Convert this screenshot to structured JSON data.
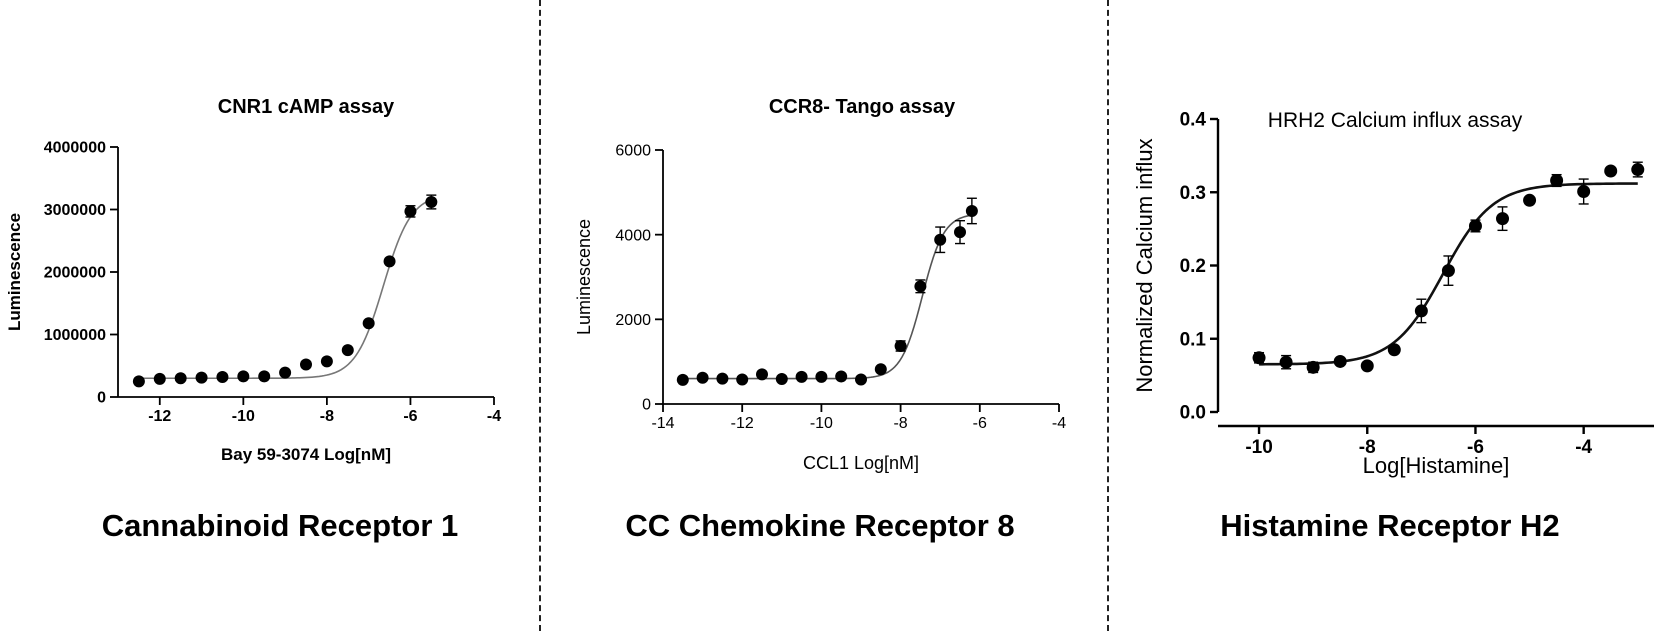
{
  "panels": [
    {
      "heading": "Cannabinoid Receptor 1",
      "chart_data": {
        "type": "scatter",
        "title": "CNR1 cAMP assay",
        "xlabel": "Bay 59-3074 Log[nM]",
        "ylabel": "Luminescence",
        "xlim": [
          -13,
          -4
        ],
        "ylim": [
          0,
          4000000
        ],
        "xticks": [
          -12,
          -10,
          -8,
          -6,
          -4
        ],
        "yticks": [
          0,
          1000000,
          2000000,
          3000000,
          4000000
        ],
        "x": [
          -12.5,
          -12.0,
          -11.5,
          -11.0,
          -10.5,
          -10.0,
          -9.5,
          -9.0,
          -8.5,
          -8.0,
          -7.5,
          -7.0,
          -6.5,
          -6.0,
          -5.5
        ],
        "y": [
          250000,
          290000,
          300000,
          310000,
          320000,
          330000,
          330000,
          390000,
          520000,
          570000,
          750000,
          1180000,
          2170000,
          2970000,
          3120000
        ],
        "err": [
          0,
          0,
          0,
          0,
          0,
          0,
          0,
          0,
          0,
          0,
          0,
          0,
          0,
          90000,
          110000
        ],
        "fit": {
          "bottom": 300000,
          "top": 3250000,
          "logEC50": -6.65,
          "hill": 1.3
        }
      }
    },
    {
      "heading": "CC Chemokine Receptor 8",
      "chart_data": {
        "type": "scatter",
        "title": "CCR8- Tango assay",
        "xlabel": "CCL1 Log[nM]",
        "ylabel": "Luminescence",
        "xlim": [
          -14,
          -4
        ],
        "ylim": [
          0,
          6000
        ],
        "xticks": [
          -14,
          -12,
          -10,
          -8,
          -6,
          -4
        ],
        "yticks": [
          0,
          2000,
          4000,
          6000
        ],
        "x": [
          -13.5,
          -13.0,
          -12.5,
          -12.0,
          -11.5,
          -11.0,
          -10.5,
          -10.0,
          -9.5,
          -9.0,
          -8.5,
          -8.0,
          -7.5,
          -7.0,
          -6.5,
          -6.2
        ],
        "y": [
          570,
          620,
          600,
          580,
          700,
          590,
          640,
          640,
          650,
          580,
          820,
          1370,
          2780,
          3880,
          4060,
          4560
        ],
        "err": [
          0,
          0,
          0,
          0,
          0,
          0,
          0,
          0,
          0,
          0,
          0,
          120,
          150,
          300,
          270,
          300
        ],
        "fit": {
          "bottom": 600,
          "top": 4500,
          "logEC50": -7.45,
          "hill": 1.6
        }
      }
    },
    {
      "heading": "Histamine Receptor H2",
      "chart_data": {
        "type": "scatter",
        "title": "HRH2 Calcium influx assay",
        "xlabel": "Log[Histamine]",
        "ylabel": "Normalized Calcium influx",
        "xlim": [
          -10.5,
          -2.7
        ],
        "ylim": [
          0,
          0.4
        ],
        "xticks": [
          -10,
          -8,
          -6,
          -4
        ],
        "yticks": [
          0.0,
          0.1,
          0.2,
          0.3,
          0.4
        ],
        "x": [
          -10.0,
          -9.5,
          -9.0,
          -8.5,
          -8.0,
          -7.5,
          -7.0,
          -6.5,
          -6.0,
          -5.5,
          -5.0,
          -4.5,
          -4.0,
          -3.5,
          -3.0
        ],
        "y": [
          0.074,
          0.068,
          0.061,
          0.069,
          0.063,
          0.085,
          0.138,
          0.193,
          0.254,
          0.264,
          0.289,
          0.316,
          0.301,
          0.329,
          0.331
        ],
        "err": [
          0.007,
          0.009,
          0.007,
          0.004,
          0.004,
          0.004,
          0.016,
          0.02,
          0.008,
          0.016,
          0.004,
          0.008,
          0.017,
          0.004,
          0.01
        ],
        "fit": {
          "bottom": 0.065,
          "top": 0.312,
          "logEC50": -6.6,
          "hill": 0.95
        }
      }
    }
  ]
}
